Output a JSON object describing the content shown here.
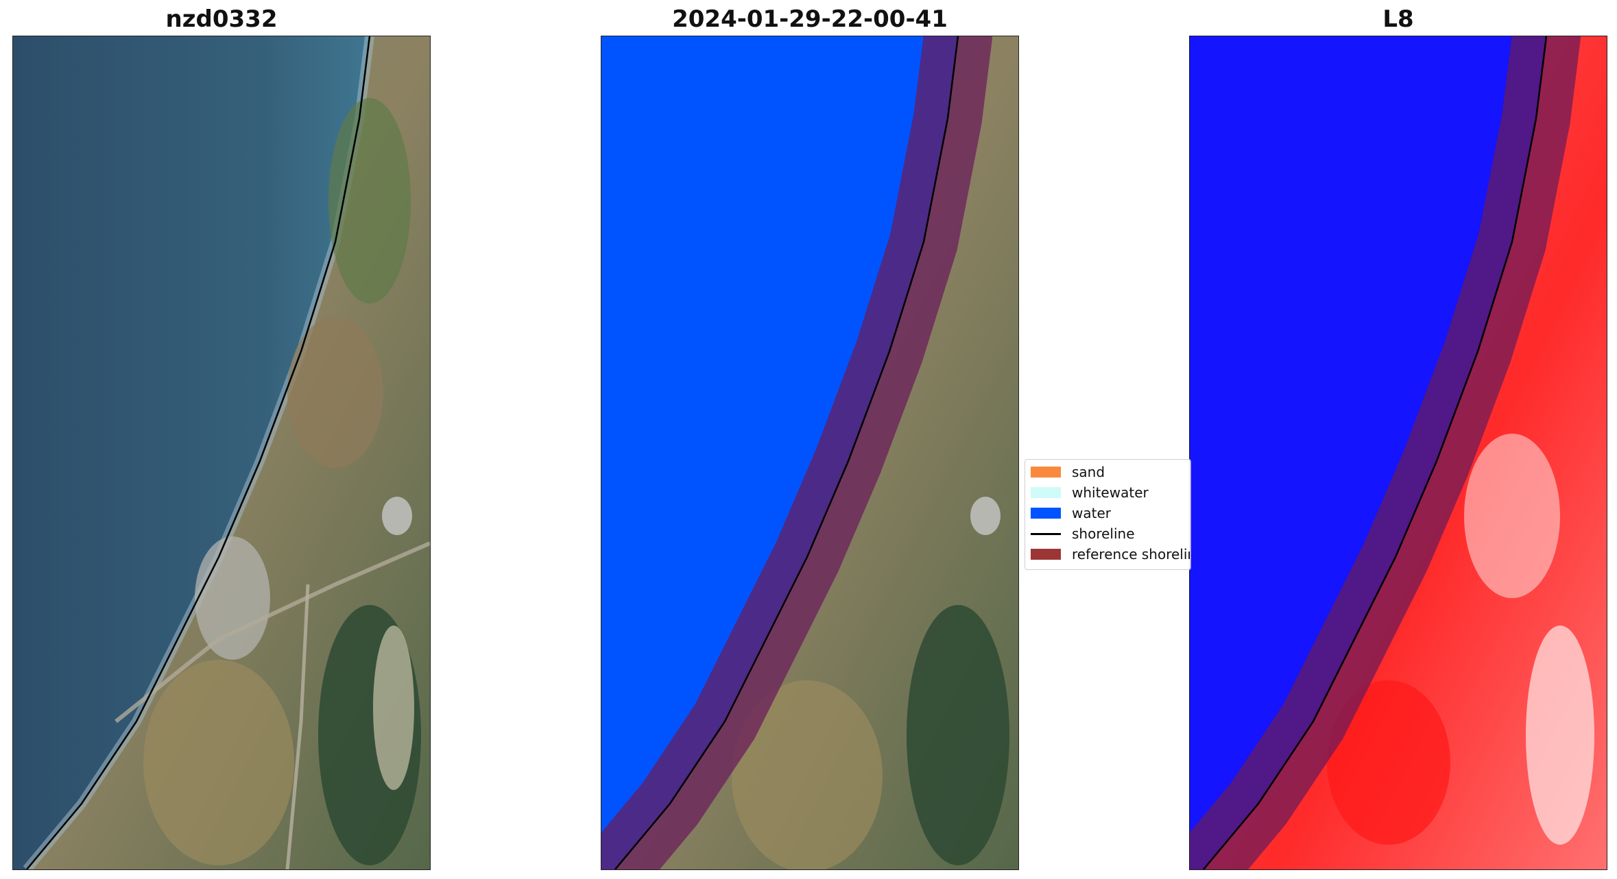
{
  "panels": [
    {
      "title": "nzd0332"
    },
    {
      "title": "2024-01-29-22-00-41"
    },
    {
      "title": "L8"
    }
  ],
  "legend": {
    "items": [
      {
        "label": "sand",
        "color": "#f98a3d",
        "type": "patch"
      },
      {
        "label": "whitewater",
        "color": "#cffbf8",
        "type": "patch"
      },
      {
        "label": "water",
        "color": "#0054ff",
        "type": "patch"
      },
      {
        "label": "shoreline",
        "color": "#000000",
        "type": "line"
      },
      {
        "label": "reference shoreline buffer",
        "color": "#9c3535",
        "type": "patch"
      }
    ]
  },
  "colors": {
    "water_class": "#0054ff",
    "buffer_overlay": "#6a1b5a",
    "index_water": "#1414ff",
    "index_land": "#ff3030"
  }
}
